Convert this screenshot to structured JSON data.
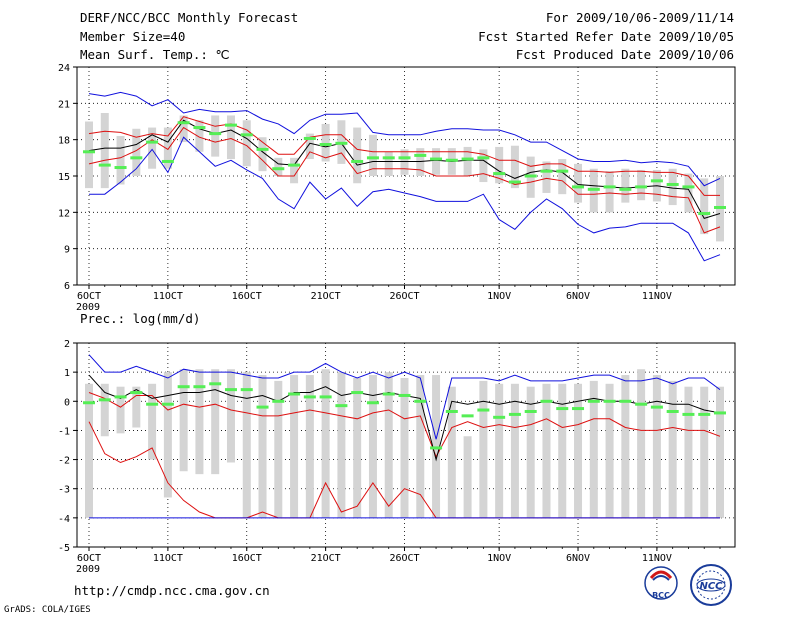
{
  "header": {
    "title": "DERF/NCC/BCC Monthly Forecast",
    "member_size": "Member Size=40",
    "variable": "Mean Surf. Temp.: ℃",
    "period": "For 2009/10/06-2009/11/14",
    "started": "Fcst Started Refer Date 2009/10/05",
    "produced": "Fcst Produced Date 2009/10/06"
  },
  "footer": {
    "url": "http://cmdp.ncc.cma.gov.cn",
    "grads": "GrADS: COLA/IGES",
    "logo_bcc": "BCC",
    "logo_ncc": "NCC"
  },
  "colors": {
    "box": "#d4d4d4",
    "mean": "#55ee55",
    "envelope": "#1010dd",
    "spread": "#dd1010",
    "median": "#000000",
    "grid": "#000000"
  },
  "chart_data": [
    {
      "type": "box",
      "title": "Mean Surf. Temp.: ℃",
      "ylabel": "℃",
      "ylim": [
        6,
        24
      ],
      "yticks": [
        6,
        9,
        12,
        15,
        18,
        21,
        24
      ],
      "xlim": [
        0,
        40
      ],
      "xtick_days": [
        1,
        6,
        11,
        16,
        21,
        27,
        32,
        37
      ],
      "xtick_labels": [
        "6OCT",
        "11OCT",
        "16OCT",
        "21OCT",
        "26OCT",
        "1NOV",
        "6NOV",
        "11NOV"
      ],
      "year_label": "2009",
      "box_low": [
        14.0,
        14.0,
        14.3,
        15.0,
        15.6,
        15.6,
        17.8,
        17.0,
        16.6,
        16.4,
        15.8,
        15.4,
        15.0,
        14.4,
        16.4,
        16.2,
        16.0,
        14.4,
        15.0,
        15.0,
        15.1,
        15.0,
        15.1,
        15.1,
        15.0,
        14.5,
        14.4,
        14.0,
        13.2,
        13.6,
        13.5,
        12.8,
        12.0,
        12.0,
        12.8,
        13.0,
        12.9,
        12.6,
        12.0,
        10.2,
        9.6
      ],
      "box_high": [
        19.5,
        20.2,
        18.3,
        18.9,
        19.0,
        19.0,
        20.0,
        19.6,
        20.0,
        20.0,
        19.6,
        18.2,
        16.5,
        16.5,
        18.5,
        19.3,
        19.6,
        19.0,
        18.4,
        17.0,
        17.2,
        17.3,
        17.3,
        17.3,
        17.4,
        17.2,
        17.4,
        17.5,
        16.6,
        16.2,
        16.4,
        16.0,
        15.6,
        15.4,
        15.6,
        15.5,
        15.5,
        15.6,
        15.2,
        14.8,
        15.0
      ],
      "box_mean": [
        17.0,
        15.9,
        15.7,
        16.5,
        17.8,
        16.2,
        19.4,
        19.0,
        18.5,
        19.2,
        18.4,
        17.2,
        15.6,
        15.9,
        18.1,
        17.6,
        17.7,
        16.2,
        16.5,
        16.5,
        16.5,
        16.7,
        16.4,
        16.3,
        16.4,
        16.5,
        15.2,
        14.5,
        15.0,
        15.4,
        15.4,
        14.1,
        13.9,
        14.1,
        13.9,
        14.1,
        14.6,
        14.3,
        14.1,
        11.9,
        12.4
      ],
      "series": [
        {
          "name": "max",
          "color": "envelope",
          "values": [
            21.8,
            21.6,
            21.9,
            21.6,
            20.8,
            21.3,
            20.2,
            20.5,
            20.3,
            20.3,
            20.4,
            19.7,
            19.3,
            18.5,
            19.6,
            20.1,
            20.1,
            20.2,
            18.6,
            18.4,
            18.4,
            18.4,
            18.7,
            18.9,
            18.9,
            18.8,
            18.8,
            18.4,
            17.8,
            17.8,
            17.1,
            16.4,
            16.2,
            16.2,
            16.3,
            16.1,
            16.2,
            16.1,
            15.8,
            14.2,
            14.8
          ]
        },
        {
          "name": "upper",
          "color": "spread",
          "values": [
            18.5,
            18.7,
            18.6,
            18.2,
            18.5,
            18.3,
            19.9,
            19.5,
            19.1,
            19.3,
            18.8,
            17.8,
            16.8,
            16.8,
            18.2,
            18.4,
            18.4,
            17.2,
            17.0,
            17.0,
            17.0,
            17.0,
            17.0,
            17.0,
            17.0,
            16.8,
            16.3,
            16.3,
            15.8,
            16.0,
            16.0,
            15.4,
            15.4,
            15.3,
            15.4,
            15.4,
            15.3,
            15.3,
            15.0,
            13.4,
            13.4
          ]
        },
        {
          "name": "median",
          "color": "median",
          "values": [
            17.1,
            17.3,
            17.3,
            17.6,
            18.4,
            17.8,
            19.6,
            18.9,
            18.5,
            18.8,
            18.1,
            17.0,
            16.0,
            15.9,
            17.7,
            17.4,
            17.7,
            15.9,
            16.2,
            16.2,
            16.2,
            16.2,
            16.3,
            16.2,
            16.3,
            16.3,
            15.4,
            14.8,
            15.3,
            15.5,
            15.3,
            14.3,
            14.2,
            14.1,
            14.0,
            14.1,
            14.2,
            14.0,
            13.9,
            11.5,
            11.9
          ]
        },
        {
          "name": "lower",
          "color": "spread",
          "values": [
            16.0,
            16.3,
            16.5,
            17.1,
            18.0,
            17.2,
            19.0,
            18.2,
            17.8,
            18.1,
            17.5,
            16.3,
            15.0,
            15.0,
            17.0,
            16.5,
            16.9,
            15.2,
            15.6,
            15.6,
            15.6,
            15.5,
            15.0,
            15.0,
            15.0,
            15.2,
            14.8,
            14.3,
            14.5,
            14.8,
            14.6,
            13.5,
            13.5,
            13.6,
            13.5,
            13.6,
            13.5,
            13.3,
            13.2,
            10.3,
            10.8
          ]
        },
        {
          "name": "min",
          "color": "envelope",
          "values": [
            13.5,
            13.5,
            14.5,
            15.6,
            17.2,
            15.3,
            18.2,
            17.0,
            15.8,
            16.3,
            15.5,
            14.8,
            13.1,
            12.3,
            14.5,
            13.1,
            14.0,
            12.5,
            13.7,
            13.9,
            13.6,
            13.3,
            12.9,
            12.9,
            12.9,
            13.5,
            11.4,
            10.6,
            12.0,
            13.1,
            12.3,
            11.0,
            10.3,
            10.7,
            10.8,
            11.1,
            11.1,
            11.1,
            10.3,
            8.0,
            8.5
          ]
        }
      ]
    },
    {
      "type": "box",
      "title": "Prec.: log(mm/d)",
      "ylabel": "log(mm/d)",
      "ylim": [
        -5,
        2
      ],
      "yticks": [
        -5,
        -4,
        -3,
        -2,
        -1,
        0,
        1,
        2
      ],
      "xlim": [
        0,
        40
      ],
      "xtick_days": [
        1,
        6,
        11,
        16,
        21,
        27,
        32,
        37
      ],
      "xtick_labels": [
        "6OCT",
        "11OCT",
        "16OCT",
        "21OCT",
        "26OCT",
        "1NOV",
        "6NOV",
        "11NOV"
      ],
      "year_label": "2009",
      "box_low": [
        -4.0,
        -1.2,
        -1.1,
        -0.9,
        -2.0,
        -3.3,
        -2.4,
        -2.5,
        -2.5,
        -2.1,
        -4.0,
        -4.0,
        -4.0,
        -4.0,
        -4.0,
        -4.0,
        -4.0,
        -4.0,
        -4.0,
        -4.0,
        -4.0,
        -4.0,
        -4.0,
        -4.0,
        -4.0,
        -4.0,
        -4.0,
        -4.0,
        -4.0,
        -4.0,
        -4.0,
        -4.0,
        -4.0,
        -4.0,
        -4.0,
        -4.0,
        -4.0,
        -4.0,
        -4.0,
        -4.0,
        -4.0
      ],
      "box_high": [
        0.6,
        0.6,
        0.5,
        0.5,
        0.6,
        1.0,
        1.1,
        1.1,
        1.1,
        1.1,
        1.0,
        0.9,
        0.7,
        0.9,
        0.9,
        1.1,
        1.0,
        0.8,
        0.9,
        1.0,
        0.8,
        0.9,
        0.9,
        0.5,
        -1.2,
        0.7,
        0.6,
        0.6,
        0.5,
        0.6,
        0.6,
        0.6,
        0.7,
        0.6,
        0.9,
        1.1,
        0.9,
        0.7,
        0.5,
        0.5,
        0.5
      ],
      "box_mean": [
        -0.05,
        0.05,
        0.15,
        0.3,
        -0.1,
        -0.1,
        0.5,
        0.5,
        0.6,
        0.4,
        0.4,
        -0.2,
        0.0,
        0.25,
        0.15,
        0.15,
        -0.15,
        0.3,
        -0.05,
        0.25,
        0.2,
        0.0,
        -1.6,
        -0.35,
        -0.5,
        -0.3,
        -0.55,
        -0.45,
        -0.35,
        0.0,
        -0.25,
        -0.25,
        0.0,
        0.0,
        0.0,
        -0.1,
        -0.2,
        -0.35,
        -0.45,
        -0.45,
        -0.4
      ],
      "series": [
        {
          "name": "max",
          "color": "envelope",
          "values": [
            1.6,
            1.0,
            1.0,
            1.2,
            1.0,
            0.8,
            1.1,
            1.0,
            1.0,
            1.0,
            0.9,
            0.8,
            0.8,
            1.0,
            1.0,
            1.3,
            1.0,
            0.8,
            1.0,
            0.8,
            1.0,
            0.8,
            -1.3,
            0.8,
            0.8,
            0.8,
            0.7,
            0.9,
            0.7,
            0.7,
            0.7,
            0.8,
            0.9,
            0.9,
            0.7,
            0.7,
            0.8,
            0.6,
            0.8,
            0.8,
            0.4
          ]
        },
        {
          "name": "upper",
          "color": "spread",
          "values": [
            0.3,
            0.1,
            -0.2,
            0.2,
            0.2,
            -0.3,
            -0.1,
            -0.2,
            -0.1,
            -0.3,
            -0.4,
            -0.5,
            -0.5,
            -0.4,
            -0.3,
            -0.4,
            -0.5,
            -0.6,
            -0.4,
            -0.3,
            -0.6,
            -0.5,
            -1.9,
            -0.9,
            -0.7,
            -0.9,
            -0.8,
            -0.9,
            -0.8,
            -0.6,
            -0.9,
            -0.8,
            -0.6,
            -0.6,
            -0.9,
            -1.0,
            -1.0,
            -0.9,
            -1.0,
            -1.0,
            -1.2
          ]
        },
        {
          "name": "median",
          "color": "median",
          "values": [
            0.9,
            0.3,
            0.1,
            0.4,
            0.1,
            0.2,
            0.3,
            0.3,
            0.4,
            0.2,
            0.1,
            0.2,
            0.0,
            0.3,
            0.3,
            0.5,
            0.2,
            0.3,
            0.2,
            0.3,
            0.2,
            0.1,
            -2.0,
            0.0,
            -0.1,
            0.0,
            -0.1,
            0.0,
            -0.1,
            0.0,
            -0.1,
            0.0,
            0.1,
            0.0,
            0.0,
            -0.1,
            0.0,
            -0.1,
            -0.1,
            -0.3,
            -0.4
          ]
        },
        {
          "name": "lower",
          "color": "spread",
          "values": [
            -0.7,
            -1.8,
            -2.1,
            -1.9,
            -1.6,
            -2.8,
            -3.4,
            -3.8,
            -4.0,
            -4.0,
            -4.0,
            -3.8,
            -4.0,
            -4.0,
            -4.0,
            -2.8,
            -3.8,
            -3.6,
            -2.8,
            -3.6,
            -3.0,
            -3.2,
            -4.0,
            -4.0,
            -4.0,
            -4.0,
            -4.0,
            -4.0,
            -4.0,
            -4.0,
            -4.0,
            -4.0,
            -4.0,
            -4.0,
            -4.0,
            -4.0,
            -4.0,
            -4.0,
            -4.0,
            -4.0,
            -4.0
          ]
        },
        {
          "name": "min",
          "color": "envelope",
          "values": [
            -4.0,
            -4.0,
            -4.0,
            -4.0,
            -4.0,
            -4.0,
            -4.0,
            -4.0,
            -4.0,
            -4.0,
            -4.0,
            -4.0,
            -4.0,
            -4.0,
            -4.0,
            -4.0,
            -4.0,
            -4.0,
            -4.0,
            -4.0,
            -4.0,
            -4.0,
            -4.0,
            -4.0,
            -4.0,
            -4.0,
            -4.0,
            -4.0,
            -4.0,
            -4.0,
            -4.0,
            -4.0,
            -4.0,
            -4.0,
            -4.0,
            -4.0,
            -4.0,
            -4.0,
            -4.0,
            -4.0,
            -4.0
          ]
        }
      ]
    }
  ]
}
